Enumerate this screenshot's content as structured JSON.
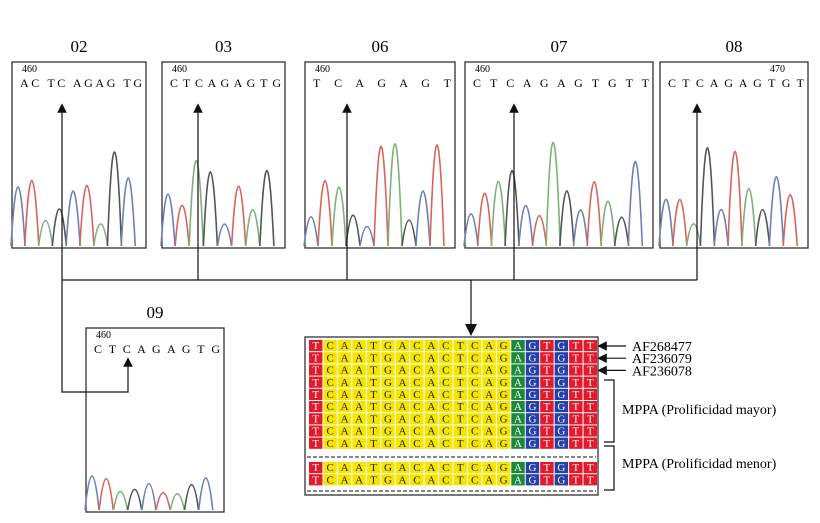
{
  "panels": [
    {
      "label": "02",
      "position": "460",
      "sequence": "AC TC AGAG TG"
    },
    {
      "label": "03",
      "position": "460",
      "sequence": "C T C A G A G T G"
    },
    {
      "label": "06",
      "position": "460",
      "sequence": "T  C  A    G  A  G T"
    },
    {
      "label": "07",
      "position": "460",
      "sequence": "C T C A G A G T G T T"
    },
    {
      "label": "08",
      "position": "470",
      "sequence": "C T C A G A G T G T"
    },
    {
      "label": "09",
      "position": "460",
      "sequence": "C T C A G A G T G"
    }
  ],
  "alignment": {
    "rows": [
      [
        "T",
        "C",
        "A",
        "A",
        "T",
        "G",
        "A",
        "C",
        "A",
        "C",
        "T",
        "C",
        "A",
        "G",
        "A",
        "G",
        "T",
        "G",
        "T",
        "T"
      ],
      [
        "T",
        "C",
        "A",
        "A",
        "T",
        "G",
        "A",
        "C",
        "A",
        "C",
        "T",
        "C",
        "A",
        "G",
        "A",
        "G",
        "T",
        "G",
        "T",
        "T"
      ],
      [
        "T",
        "C",
        "A",
        "A",
        "T",
        "G",
        "A",
        "C",
        "A",
        "C",
        "T",
        "C",
        "A",
        "G",
        "A",
        "G",
        "T",
        "G",
        "T",
        "T"
      ],
      [
        "T",
        "C",
        "A",
        "A",
        "T",
        "G",
        "A",
        "C",
        "A",
        "C",
        "T",
        "C",
        "A",
        "G",
        "A",
        "G",
        "T",
        "G",
        "T",
        "T"
      ],
      [
        "T",
        "C",
        "A",
        "A",
        "T",
        "G",
        "A",
        "C",
        "A",
        "C",
        "T",
        "C",
        "A",
        "G",
        "A",
        "G",
        "T",
        "G",
        "T",
        "T"
      ],
      [
        "T",
        "C",
        "A",
        "A",
        "T",
        "G",
        "A",
        "C",
        "A",
        "C",
        "T",
        "C",
        "A",
        "G",
        "A",
        "G",
        "T",
        "G",
        "T",
        "T"
      ],
      [
        "T",
        "C",
        "A",
        "A",
        "T",
        "G",
        "A",
        "C",
        "A",
        "C",
        "T",
        "C",
        "A",
        "G",
        "A",
        "G",
        "T",
        "G",
        "T",
        "T"
      ],
      [
        "T",
        "C",
        "A",
        "A",
        "T",
        "G",
        "A",
        "C",
        "A",
        "C",
        "T",
        "C",
        "A",
        "G",
        "A",
        "G",
        "T",
        "G",
        "T",
        "T"
      ],
      [
        "T",
        "C",
        "A",
        "A",
        "T",
        "G",
        "A",
        "C",
        "A",
        "C",
        "T",
        "C",
        "A",
        "G",
        "A",
        "G",
        "T",
        "G",
        "T",
        "T"
      ],
      [
        "T",
        "C",
        "A",
        "A",
        "T",
        "G",
        "A",
        "C",
        "A",
        "C",
        "T",
        "C",
        "A",
        "G",
        "A",
        "G",
        "T",
        "G",
        "T",
        "T"
      ],
      [
        "T",
        "C",
        "A",
        "A",
        "T",
        "G",
        "A",
        "C",
        "A",
        "C",
        "T",
        "C",
        "A",
        "G",
        "A",
        "G",
        "T",
        "G",
        "T",
        "T"
      ]
    ],
    "accessions": [
      "AF268477",
      "AF236079",
      "AF236078"
    ],
    "groups": [
      "MPPA (Prolificidad mayor)",
      "MPPA (Prolificidad menor)"
    ]
  }
}
